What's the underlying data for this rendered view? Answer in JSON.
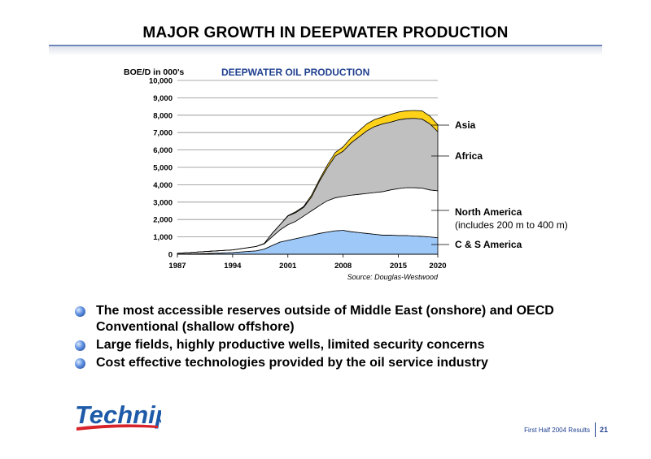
{
  "slide": {
    "title": "MAJOR GROWTH IN DEEPWATER PRODUCTION",
    "bullets": [
      "The most accessible reserves outside of Middle East (onshore) and OECD Conventional (shallow offshore)",
      "Large fields, highly productive wells, limited security concerns",
      "Cost effective technologies provided by the oil service industry"
    ],
    "logo_text": "Technip",
    "footer_text": "First Half 2004 Results",
    "page_number": "21"
  },
  "chart_data": {
    "type": "area",
    "stacked": true,
    "title": "DEEPWATER OIL PRODUCTION",
    "ylabel": "BOE/D in 000's",
    "xlabel": "",
    "source": "Source: Douglas-Westwood",
    "x_ticks": [
      "1987",
      "1994",
      "2001",
      "2008",
      "2015",
      "2020"
    ],
    "y_ticks": [
      "0",
      "1,000",
      "2,000",
      "3,000",
      "4,000",
      "5,000",
      "6,000",
      "7,000",
      "8,000",
      "9,000",
      "10,000"
    ],
    "xlim": [
      1987,
      2020
    ],
    "ylim": [
      0,
      10000
    ],
    "grid": true,
    "x": [
      1987,
      1990,
      1994,
      1997,
      1998,
      1999,
      2000,
      2001,
      2002,
      2003,
      2004,
      2005,
      2006,
      2007,
      2008,
      2009,
      2010,
      2011,
      2012,
      2013,
      2014,
      2015,
      2016,
      2017,
      2018,
      2019,
      2020
    ],
    "series": [
      {
        "name": "C & S America",
        "color": "#9ec8f8",
        "values": [
          10,
          40,
          100,
          200,
          300,
          500,
          700,
          800,
          900,
          1000,
          1100,
          1200,
          1280,
          1350,
          1380,
          1300,
          1250,
          1200,
          1150,
          1100,
          1100,
          1080,
          1080,
          1050,
          1030,
          1000,
          950
        ]
      },
      {
        "name": "North America",
        "label_line2": "(includes 200 m to 400 m)",
        "color": "#ffffff",
        "values": [
          50,
          100,
          150,
          250,
          300,
          500,
          700,
          900,
          1000,
          1200,
          1400,
          1600,
          1800,
          1900,
          1950,
          2100,
          2200,
          2300,
          2400,
          2500,
          2600,
          2700,
          2750,
          2780,
          2780,
          2700,
          2700
        ]
      },
      {
        "name": "Africa",
        "color": "#c0c0c0",
        "values": [
          0,
          0,
          0,
          0,
          20,
          200,
          300,
          500,
          500,
          500,
          800,
          1400,
          1900,
          2400,
          2600,
          3000,
          3300,
          3600,
          3800,
          3900,
          3900,
          3950,
          3970,
          3990,
          3970,
          3800,
          3400
        ]
      },
      {
        "name": "Asia",
        "color": "#ffd21a",
        "values": [
          0,
          0,
          0,
          0,
          0,
          0,
          0,
          20,
          50,
          50,
          100,
          100,
          150,
          200,
          250,
          300,
          350,
          400,
          400,
          400,
          450,
          450,
          450,
          450,
          470,
          450,
          400
        ]
      }
    ]
  }
}
